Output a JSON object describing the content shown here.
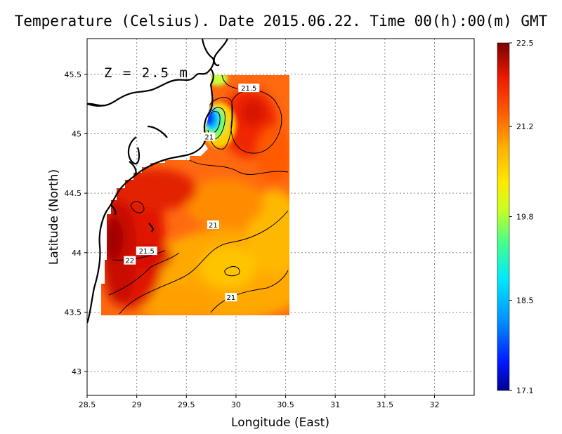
{
  "title": "Temperature (Celsius). Date 2015.06.22. Time 00(h):00(m) GMT",
  "depth_label": "Z = 2.5 m",
  "x_axis": {
    "label": "Longitude (East)",
    "range": [
      28.5,
      32.4
    ],
    "ticks": [
      28.5,
      29,
      29.5,
      30,
      30.5,
      31,
      31.5,
      32
    ],
    "tick_labels": [
      "28.5",
      "29",
      "29.5",
      "30",
      "30.5",
      "31",
      "31.5",
      "32"
    ]
  },
  "y_axis": {
    "label": "Latitude (North)",
    "range": [
      42.8,
      45.8
    ],
    "ticks": [
      43,
      43.5,
      44,
      44.5,
      45,
      45.5
    ],
    "tick_labels": [
      "43",
      "43.5",
      "44",
      "44.5",
      "45",
      "45.5"
    ]
  },
  "grid": "dotted",
  "colorbar": {
    "min": 17.1,
    "max": 22.5,
    "tick_values": [
      22.5,
      21.2,
      19.8,
      18.5,
      17.1
    ],
    "tick_labels": [
      "22.5",
      "21.2",
      "19.8",
      "18.5",
      "17.1"
    ],
    "colors": [
      "#00008f",
      "#0020ff",
      "#00b0ff",
      "#30ffc0",
      "#c8ff30",
      "#ffe000",
      "#ff9000",
      "#ff3000",
      "#c80000",
      "#800000"
    ]
  },
  "contour_labels": [
    {
      "text": "21.5",
      "lon": 30.13,
      "lat": 45.38
    },
    {
      "text": "21",
      "lon": 29.73,
      "lat": 44.97
    },
    {
      "text": "21",
      "lon": 29.77,
      "lat": 44.23
    },
    {
      "text": "21.5",
      "lon": 29.1,
      "lat": 44.01
    },
    {
      "text": "22",
      "lon": 28.93,
      "lat": 43.93
    },
    {
      "text": "21",
      "lon": 29.95,
      "lat": 43.62
    }
  ],
  "chart_data": {
    "type": "heatmap",
    "variable": "Temperature",
    "unit": "Celsius",
    "date": "2015.06.22",
    "time": "00(h):00(m) GMT",
    "depth": "2.5 m",
    "domain_lon": [
      28.62,
      30.55
    ],
    "domain_lat": [
      43.48,
      45.5
    ],
    "value_range": [
      17.1,
      22.5
    ],
    "contour_levels": [
      21,
      21.5,
      22
    ],
    "hot_spots": [
      {
        "lon": 28.85,
        "lat": 44.2,
        "value": 22.3
      },
      {
        "lon": 29.2,
        "lat": 44.5,
        "value": 22.1
      },
      {
        "lon": 30.1,
        "lat": 45.1,
        "value": 21.8
      },
      {
        "lon": 30.2,
        "lat": 45.3,
        "value": 21.7
      }
    ],
    "cold_spots": [
      {
        "lon": 29.72,
        "lat": 45.15,
        "value": 17.3
      },
      {
        "lon": 29.8,
        "lat": 45.45,
        "value": 20.2
      }
    ],
    "warm_low_region": [
      {
        "lon": 30.0,
        "lat": 43.8,
        "value": 20.7
      },
      {
        "lon": 30.4,
        "lat": 44.2,
        "value": 20.8
      }
    ]
  }
}
